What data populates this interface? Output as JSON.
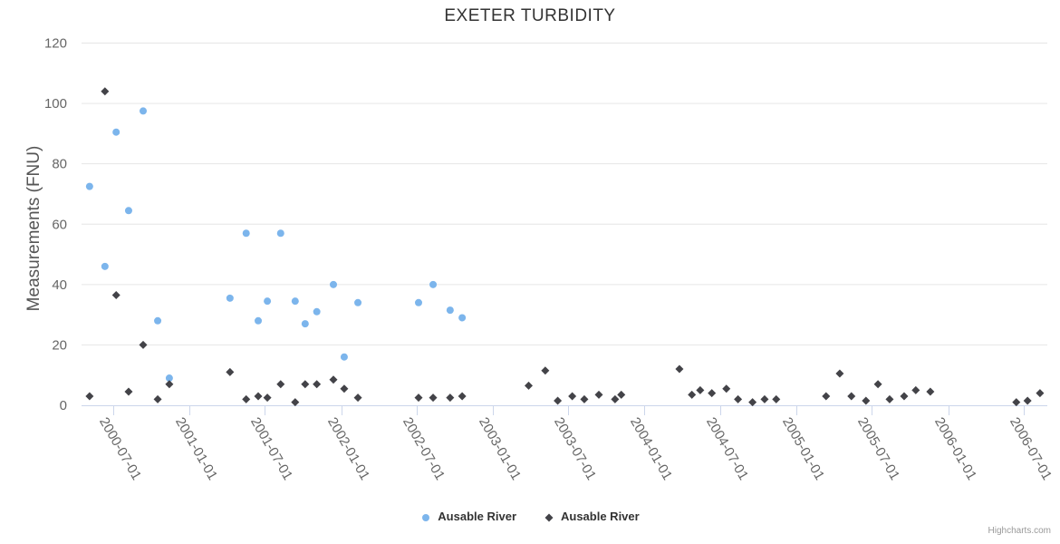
{
  "credits": {
    "label": "Highcharts.com"
  },
  "chart_data": {
    "type": "scatter",
    "title": "EXETER TURBIDITY",
    "xlabel": "",
    "ylabel": "Measurements (FNU)",
    "ylim": [
      0,
      120
    ],
    "yticks": [
      0,
      20,
      40,
      60,
      80,
      100,
      120
    ],
    "xtick_labels": [
      "2000-07-01",
      "2001-01-01",
      "2001-07-01",
      "2002-01-01",
      "2002-07-01",
      "2003-01-01",
      "2003-07-01",
      "2004-01-01",
      "2004-07-01",
      "2005-01-01",
      "2005-07-01",
      "2006-01-01",
      "2006-07-01"
    ],
    "grid": true,
    "legend_position": "bottom-center",
    "colors": {
      "series_blue": "#7cb5ec",
      "series_dark": "#434348",
      "gridline": "#e6e6e6",
      "axis_line": "#ccd6eb",
      "title_text": "#333333",
      "axis_label_text": "#666666",
      "legend_text": "#333333",
      "credits_text": "#999999"
    },
    "series": [
      {
        "name": "Ausable River",
        "marker": "circle",
        "color": "#7cb5ec",
        "points": [
          [
            "2000-05-05",
            72.5
          ],
          [
            "2000-06-11",
            46
          ],
          [
            "2000-07-08",
            90.5
          ],
          [
            "2000-08-07",
            64.5
          ],
          [
            "2000-09-11",
            97.5
          ],
          [
            "2000-10-16",
            28
          ],
          [
            "2000-11-13",
            9
          ],
          [
            "2001-04-08",
            35.5
          ],
          [
            "2001-05-17",
            57
          ],
          [
            "2001-06-15",
            28
          ],
          [
            "2001-07-07",
            34.5
          ],
          [
            "2001-08-08",
            57
          ],
          [
            "2001-09-12",
            34.5
          ],
          [
            "2001-10-06",
            27
          ],
          [
            "2001-11-03",
            31
          ],
          [
            "2001-12-13",
            40
          ],
          [
            "2002-01-08",
            16
          ],
          [
            "2002-02-10",
            34
          ],
          [
            "2002-07-06",
            34
          ],
          [
            "2002-08-10",
            40
          ],
          [
            "2002-09-20",
            31.5
          ],
          [
            "2002-10-19",
            29
          ]
        ]
      },
      {
        "name": "Ausable River",
        "marker": "diamond",
        "color": "#434348",
        "points": [
          [
            "2000-05-05",
            3
          ],
          [
            "2000-06-11",
            104
          ],
          [
            "2000-07-08",
            36.5
          ],
          [
            "2000-08-07",
            4.5
          ],
          [
            "2000-09-11",
            20
          ],
          [
            "2000-10-16",
            2
          ],
          [
            "2000-11-13",
            7
          ],
          [
            "2001-04-08",
            11
          ],
          [
            "2001-05-17",
            2
          ],
          [
            "2001-06-15",
            3
          ],
          [
            "2001-07-07",
            2.5
          ],
          [
            "2001-08-08",
            7
          ],
          [
            "2001-09-12",
            1
          ],
          [
            "2001-10-06",
            7
          ],
          [
            "2001-11-03",
            7
          ],
          [
            "2001-12-13",
            8.5
          ],
          [
            "2002-01-08",
            5.5
          ],
          [
            "2002-02-10",
            2.5
          ],
          [
            "2002-07-06",
            2.5
          ],
          [
            "2002-08-10",
            2.5
          ],
          [
            "2002-09-20",
            2.5
          ],
          [
            "2002-10-19",
            3
          ],
          [
            "2003-03-28",
            6.5
          ],
          [
            "2003-05-07",
            11.5
          ],
          [
            "2003-06-06",
            1.5
          ],
          [
            "2003-07-11",
            3
          ],
          [
            "2003-08-09",
            2
          ],
          [
            "2003-09-13",
            3.5
          ],
          [
            "2003-10-22",
            2
          ],
          [
            "2003-11-06",
            3.5
          ],
          [
            "2004-03-25",
            12
          ],
          [
            "2004-04-24",
            3.5
          ],
          [
            "2004-05-14",
            5
          ],
          [
            "2004-06-11",
            4
          ],
          [
            "2004-07-16",
            5.5
          ],
          [
            "2004-08-13",
            2
          ],
          [
            "2004-09-17",
            1
          ],
          [
            "2004-10-16",
            2
          ],
          [
            "2004-11-13",
            2
          ],
          [
            "2005-03-13",
            3
          ],
          [
            "2005-04-15",
            10.5
          ],
          [
            "2005-05-13",
            3
          ],
          [
            "2005-06-17",
            1.5
          ],
          [
            "2005-07-16",
            7
          ],
          [
            "2005-08-13",
            2
          ],
          [
            "2005-09-17",
            3
          ],
          [
            "2005-10-15",
            5
          ],
          [
            "2005-11-19",
            4.5
          ],
          [
            "2006-06-14",
            1
          ],
          [
            "2006-07-11",
            1.5
          ],
          [
            "2006-08-10",
            4
          ]
        ]
      }
    ]
  }
}
